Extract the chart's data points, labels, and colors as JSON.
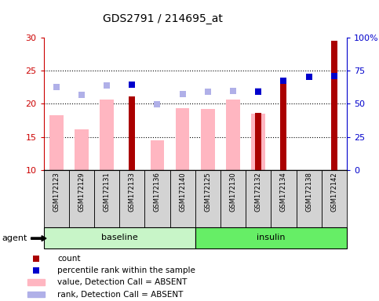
{
  "title": "GDS2791 / 214695_at",
  "samples": [
    "GSM172123",
    "GSM172129",
    "GSM172131",
    "GSM172133",
    "GSM172136",
    "GSM172140",
    "GSM172125",
    "GSM172130",
    "GSM172132",
    "GSM172134",
    "GSM172138",
    "GSM172142"
  ],
  "groups": [
    {
      "label": "baseline",
      "start": 0,
      "end": 6
    },
    {
      "label": "insulin",
      "start": 6,
      "end": 12
    }
  ],
  "value_absent": [
    18.3,
    16.1,
    20.6,
    null,
    14.5,
    19.4,
    19.2,
    20.6,
    18.5,
    null,
    null,
    null
  ],
  "rank_absent": [
    22.5,
    21.3,
    22.8,
    null,
    19.95,
    21.5,
    21.8,
    21.9,
    21.9,
    null,
    null,
    null
  ],
  "count": [
    null,
    null,
    null,
    21.1,
    null,
    null,
    null,
    null,
    18.6,
    23.2,
    null,
    29.5
  ],
  "pct_rank": [
    null,
    null,
    null,
    22.9,
    null,
    null,
    null,
    null,
    21.8,
    23.5,
    24.1,
    24.2
  ],
  "value_absent_color": "#FFB6C1",
  "rank_absent_color": "#B0B0E8",
  "count_color": "#AA0000",
  "pct_rank_color": "#0000CC",
  "ylim_left": [
    10,
    30
  ],
  "ylim_right": [
    0,
    100
  ],
  "yticks_left": [
    10,
    15,
    20,
    25,
    30
  ],
  "yticks_right": [
    0,
    25,
    50,
    75,
    100
  ],
  "ytick_labels_right": [
    "0",
    "25",
    "50",
    "75",
    "100%"
  ],
  "left_axis_color": "#CC0000",
  "right_axis_color": "#0000CC",
  "group_colors": [
    "#C8F5C8",
    "#66EE66"
  ],
  "sample_box_color": "#D3D3D3",
  "value_bar_width": 0.55,
  "count_bar_width": 0.25
}
